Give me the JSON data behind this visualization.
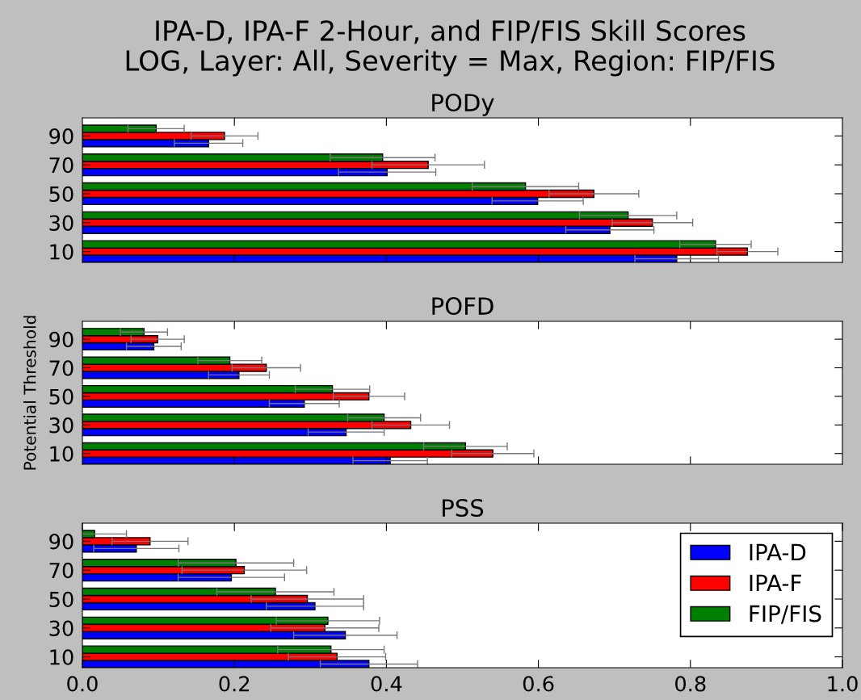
{
  "chart_data": [
    {
      "type": "bar",
      "orientation": "horizontal",
      "title": "PODy",
      "annotations": [
        "IPA-D, IPA-F 2-Hour, and FIP/FIS Skill Scores",
        "LOG, Layer: All, Severity = Max, Region: FIP/FIS"
      ],
      "categories": [
        "90",
        "70",
        "50",
        "30",
        "10"
      ],
      "xlim": [
        0,
        1
      ],
      "xticks": [
        0.2,
        0.4,
        0.6,
        0.8
      ],
      "tick_labels": "y",
      "series": [
        {
          "color": "#0000ff",
          "values": [
            0.166,
            0.401,
            0.599,
            0.694,
            0.782
          ],
          "errors": [
            0.045,
            0.064,
            0.06,
            0.058,
            0.055
          ]
        },
        {
          "color": "#ff0000",
          "values": [
            0.187,
            0.455,
            0.673,
            0.75,
            0.875
          ],
          "errors": [
            0.044,
            0.074,
            0.059,
            0.053,
            0.04
          ]
        },
        {
          "color": "#008000",
          "values": [
            0.097,
            0.395,
            0.583,
            0.718,
            0.833
          ],
          "errors": [
            0.037,
            0.069,
            0.07,
            0.064,
            0.047
          ]
        }
      ]
    },
    {
      "type": "bar",
      "orientation": "horizontal",
      "title": "POFD",
      "ylabel": "Potential Threshold",
      "categories": [
        "90",
        "70",
        "50",
        "30",
        "10"
      ],
      "xlim": [
        0,
        1
      ],
      "xticks": [
        0.2,
        0.4,
        0.6,
        0.8
      ],
      "tick_labels": "y",
      "series": [
        {
          "color": "#0000ff",
          "values": [
            0.094,
            0.206,
            0.292,
            0.347,
            0.405
          ],
          "errors": [
            0.036,
            0.04,
            0.046,
            0.05,
            0.049
          ]
        },
        {
          "color": "#ff0000",
          "values": [
            0.099,
            0.242,
            0.377,
            0.432,
            0.54
          ],
          "errors": [
            0.035,
            0.045,
            0.047,
            0.051,
            0.054
          ]
        },
        {
          "color": "#008000",
          "values": [
            0.081,
            0.194,
            0.329,
            0.397,
            0.504
          ],
          "errors": [
            0.031,
            0.042,
            0.049,
            0.048,
            0.055
          ]
        }
      ]
    },
    {
      "type": "bar",
      "orientation": "horizontal",
      "title": "PSS",
      "categories": [
        "90",
        "70",
        "50",
        "30",
        "10"
      ],
      "xlim": [
        0,
        1
      ],
      "xticks": [
        {
          "value": 0,
          "label": "0.0"
        },
        0.2,
        0.4,
        0.6,
        0.8,
        {
          "value": 1,
          "label": "1.0"
        }
      ],
      "legend": "top right",
      "series": [
        {
          "name": "IPA-D",
          "color": "#0000ff",
          "values": [
            0.071,
            0.196,
            0.306,
            0.346,
            0.377
          ],
          "errors": [
            0.056,
            0.07,
            0.064,
            0.068,
            0.064
          ]
        },
        {
          "name": "IPA-F",
          "color": "#ff0000",
          "values": [
            0.089,
            0.213,
            0.296,
            0.319,
            0.335
          ],
          "errors": [
            0.05,
            0.082,
            0.074,
            0.071,
            0.064
          ]
        },
        {
          "name": "FIP/FIS",
          "color": "#008000",
          "values": [
            0.016,
            0.202,
            0.254,
            0.323,
            0.327
          ],
          "errors": [
            [
              0,
              0.058
            ],
            0.076,
            0.077,
            0.068,
            0.07
          ]
        }
      ]
    }
  ]
}
